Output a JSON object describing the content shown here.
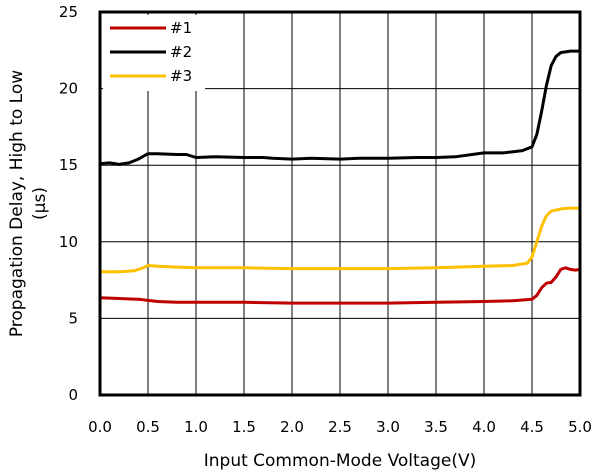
{
  "chart_data": {
    "type": "line",
    "title": "",
    "xlabel": "Input Common-Mode Voltage(V)",
    "ylabel_lines": [
      "Propagation Delay, High to Low",
      "(µs)"
    ],
    "xlim": [
      0,
      5
    ],
    "ylim": [
      0,
      25
    ],
    "x_ticks": [
      "0.0",
      "0.5",
      "1.0",
      "1.5",
      "2.0",
      "2.5",
      "3.0",
      "3.5",
      "4.0",
      "4.5",
      "5.0"
    ],
    "y_ticks": [
      "0",
      "5",
      "10",
      "15",
      "20",
      "25"
    ],
    "grid": true,
    "legend_position": "top-left",
    "series": [
      {
        "name": "#1",
        "color": "#c00000",
        "points": [
          [
            0,
            6.35
          ],
          [
            0.2,
            6.3
          ],
          [
            0.4,
            6.25
          ],
          [
            0.6,
            6.1
          ],
          [
            0.8,
            6.05
          ],
          [
            1.0,
            6.05
          ],
          [
            1.5,
            6.05
          ],
          [
            2.0,
            6.0
          ],
          [
            2.5,
            6.0
          ],
          [
            3.0,
            6.0
          ],
          [
            3.5,
            6.05
          ],
          [
            4.0,
            6.1
          ],
          [
            4.3,
            6.15
          ],
          [
            4.5,
            6.25
          ],
          [
            4.55,
            6.5
          ],
          [
            4.6,
            7.0
          ],
          [
            4.65,
            7.3
          ],
          [
            4.7,
            7.35
          ],
          [
            4.75,
            7.7
          ],
          [
            4.8,
            8.2
          ],
          [
            4.85,
            8.3
          ],
          [
            4.9,
            8.2
          ],
          [
            4.95,
            8.15
          ],
          [
            5.0,
            8.2
          ]
        ]
      },
      {
        "name": "#2",
        "color": "#000000",
        "points": [
          [
            0,
            15.1
          ],
          [
            0.1,
            15.15
          ],
          [
            0.2,
            15.05
          ],
          [
            0.3,
            15.15
          ],
          [
            0.4,
            15.4
          ],
          [
            0.5,
            15.75
          ],
          [
            0.6,
            15.75
          ],
          [
            0.8,
            15.7
          ],
          [
            0.9,
            15.7
          ],
          [
            1.0,
            15.5
          ],
          [
            1.2,
            15.55
          ],
          [
            1.5,
            15.5
          ],
          [
            1.7,
            15.5
          ],
          [
            1.8,
            15.45
          ],
          [
            2.0,
            15.4
          ],
          [
            2.2,
            15.45
          ],
          [
            2.5,
            15.4
          ],
          [
            2.7,
            15.45
          ],
          [
            3.0,
            15.45
          ],
          [
            3.3,
            15.5
          ],
          [
            3.5,
            15.5
          ],
          [
            3.7,
            15.55
          ],
          [
            4.0,
            15.8
          ],
          [
            4.2,
            15.8
          ],
          [
            4.4,
            15.95
          ],
          [
            4.5,
            16.2
          ],
          [
            4.55,
            17.0
          ],
          [
            4.6,
            18.5
          ],
          [
            4.65,
            20.2
          ],
          [
            4.7,
            21.5
          ],
          [
            4.75,
            22.1
          ],
          [
            4.8,
            22.35
          ],
          [
            4.9,
            22.45
          ],
          [
            5.0,
            22.45
          ]
        ]
      },
      {
        "name": "#3",
        "color": "#ffc000",
        "points": [
          [
            0,
            8.05
          ],
          [
            0.2,
            8.05
          ],
          [
            0.35,
            8.1
          ],
          [
            0.45,
            8.3
          ],
          [
            0.5,
            8.45
          ],
          [
            0.6,
            8.4
          ],
          [
            0.8,
            8.35
          ],
          [
            1.0,
            8.3
          ],
          [
            1.5,
            8.3
          ],
          [
            2.0,
            8.25
          ],
          [
            2.5,
            8.25
          ],
          [
            3.0,
            8.25
          ],
          [
            3.5,
            8.3
          ],
          [
            4.0,
            8.4
          ],
          [
            4.3,
            8.45
          ],
          [
            4.45,
            8.6
          ],
          [
            4.5,
            9.0
          ],
          [
            4.55,
            10.0
          ],
          [
            4.6,
            11.0
          ],
          [
            4.65,
            11.7
          ],
          [
            4.7,
            12.0
          ],
          [
            4.8,
            12.15
          ],
          [
            4.9,
            12.2
          ],
          [
            5.0,
            12.2
          ]
        ]
      }
    ]
  }
}
